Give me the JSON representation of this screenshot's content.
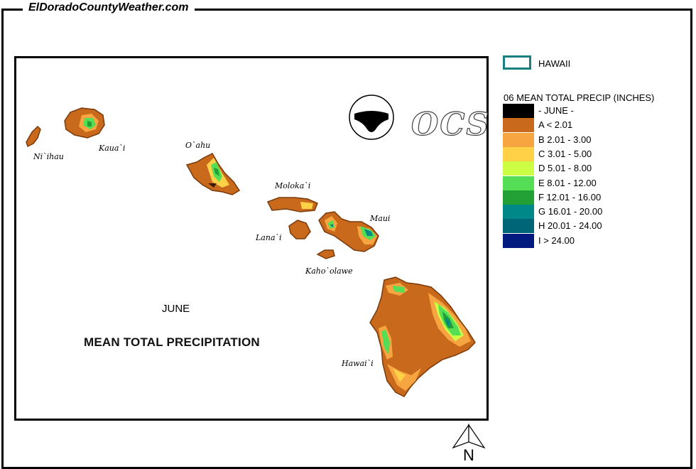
{
  "header": {
    "site_title": "ElDoradoCountyWeather.com"
  },
  "map": {
    "month_label": "JUNE",
    "title": "MEAN TOTAL PRECIPITATION",
    "logo_noaa_text": "NOAA",
    "logo_ocs_text": "OCS",
    "north_label": "N",
    "islands": [
      {
        "name": "Ni`ihau"
      },
      {
        "name": "Kaua`i"
      },
      {
        "name": "O`ahu"
      },
      {
        "name": "Moloka`i"
      },
      {
        "name": "Lana`i"
      },
      {
        "name": "Maui"
      },
      {
        "name": "Kaho`olawe"
      },
      {
        "name": "Hawai`i"
      }
    ]
  },
  "legend": {
    "state_label": "HAWAII",
    "state_color": "#1a7f80",
    "title": "06 MEAN TOTAL PRECIP (INCHES)",
    "items": [
      {
        "label": "- JUNE -",
        "color": "#000000"
      },
      {
        "label": "A < 2.01",
        "color": "#c8691c"
      },
      {
        "label": "B 2.01 - 3.00",
        "color": "#f6a540"
      },
      {
        "label": "C 3.01 - 5.00",
        "color": "#ffd146"
      },
      {
        "label": "D 5.01 - 8.00",
        "color": "#ccff44"
      },
      {
        "label": "E 8.01 - 12.00",
        "color": "#55dd55"
      },
      {
        "label": "F 12.01 - 16.00",
        "color": "#22a035"
      },
      {
        "label": "G 16.01 - 20.00",
        "color": "#008787"
      },
      {
        "label": "H 20.01 - 24.00",
        "color": "#006677"
      },
      {
        "label": "I > 24.00",
        "color": "#001a80"
      }
    ]
  }
}
